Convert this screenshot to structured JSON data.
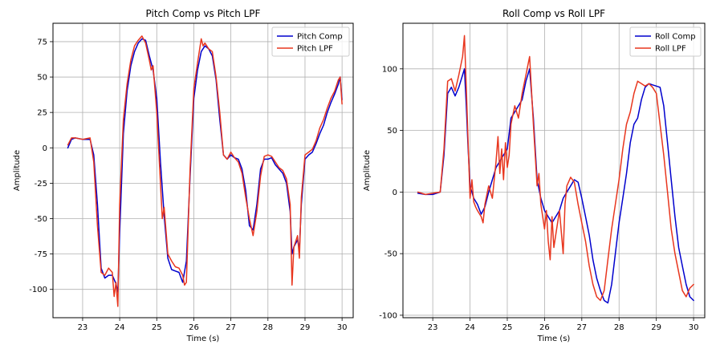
{
  "chart_data": [
    {
      "type": "line",
      "title": "Pitch Comp vs Pitch LPF",
      "xlabel": "Time (s)",
      "ylabel": "Amplitude",
      "xlim": [
        22.2,
        30.3
      ],
      "ylim": [
        -120,
        88
      ],
      "xticks": [
        23,
        24,
        25,
        26,
        27,
        28,
        29,
        30
      ],
      "yticks": [
        -100,
        -75,
        -50,
        -25,
        0,
        25,
        50,
        75
      ],
      "grid": true,
      "legend": "top-right",
      "series": [
        {
          "name": "Pitch Comp",
          "color": "#0000cd",
          "x": [
            22.6,
            22.7,
            22.8,
            23.0,
            23.2,
            23.3,
            23.4,
            23.5,
            23.6,
            23.7,
            23.8,
            23.9,
            23.95,
            24.0,
            24.1,
            24.2,
            24.3,
            24.4,
            24.5,
            24.6,
            24.7,
            24.8,
            24.9,
            25.0,
            25.1,
            25.2,
            25.3,
            25.4,
            25.5,
            25.6,
            25.7,
            25.8,
            25.9,
            26.0,
            26.1,
            26.2,
            26.3,
            26.4,
            26.5,
            26.6,
            26.7,
            26.8,
            26.9,
            27.0,
            27.1,
            27.2,
            27.3,
            27.4,
            27.5,
            27.6,
            27.7,
            27.8,
            27.9,
            28.0,
            28.1,
            28.2,
            28.3,
            28.4,
            28.5,
            28.6,
            28.65,
            28.7,
            28.8,
            28.85,
            28.9,
            29.0,
            29.1,
            29.2,
            29.3,
            29.4,
            29.5,
            29.6,
            29.7,
            29.8,
            29.9,
            29.95,
            30.0
          ],
          "values": [
            0,
            6,
            7,
            6,
            6,
            -5,
            -40,
            -85,
            -92,
            -90,
            -90,
            -96,
            -102,
            -60,
            10,
            40,
            58,
            68,
            74,
            77,
            76,
            65,
            55,
            35,
            -10,
            -48,
            -78,
            -86,
            -87,
            -88,
            -95,
            -80,
            -20,
            35,
            55,
            68,
            72,
            70,
            65,
            48,
            20,
            -5,
            -8,
            -5,
            -7,
            -8,
            -15,
            -30,
            -55,
            -58,
            -40,
            -15,
            -8,
            -8,
            -7,
            -12,
            -15,
            -18,
            -25,
            -45,
            -75,
            -70,
            -65,
            -72,
            -40,
            -8,
            -5,
            -3,
            3,
            10,
            16,
            25,
            32,
            38,
            45,
            50,
            34
          ]
        },
        {
          "name": "Pitch LPF",
          "color": "#e8361e",
          "x": [
            22.6,
            22.7,
            22.8,
            23.0,
            23.2,
            23.3,
            23.4,
            23.5,
            23.6,
            23.7,
            23.8,
            23.85,
            23.9,
            23.95,
            24.0,
            24.05,
            24.1,
            24.2,
            24.3,
            24.4,
            24.5,
            24.6,
            24.7,
            24.8,
            24.85,
            24.9,
            25.0,
            25.1,
            25.15,
            25.2,
            25.3,
            25.4,
            25.5,
            25.6,
            25.7,
            25.75,
            25.8,
            25.9,
            26.0,
            26.1,
            26.2,
            26.25,
            26.3,
            26.4,
            26.5,
            26.6,
            26.7,
            26.8,
            26.9,
            27.0,
            27.1,
            27.2,
            27.3,
            27.4,
            27.5,
            27.6,
            27.7,
            27.8,
            27.9,
            28.0,
            28.1,
            28.2,
            28.3,
            28.4,
            28.5,
            28.6,
            28.65,
            28.7,
            28.8,
            28.85,
            28.9,
            29.0,
            29.1,
            29.2,
            29.3,
            29.4,
            29.5,
            29.6,
            29.7,
            29.8,
            29.9,
            29.95,
            30.0
          ],
          "values": [
            2,
            7,
            7,
            6,
            7,
            -10,
            -55,
            -88,
            -90,
            -85,
            -88,
            -105,
            -95,
            -112,
            -40,
            -10,
            20,
            45,
            62,
            72,
            76,
            79,
            74,
            62,
            55,
            58,
            25,
            -25,
            -50,
            -42,
            -75,
            -80,
            -84,
            -85,
            -90,
            -97,
            -95,
            -15,
            42,
            60,
            77,
            72,
            74,
            70,
            68,
            50,
            25,
            -5,
            -8,
            -3,
            -7,
            -10,
            -18,
            -35,
            -50,
            -62,
            -45,
            -20,
            -6,
            -5,
            -6,
            -10,
            -14,
            -16,
            -22,
            -40,
            -97,
            -70,
            -62,
            -78,
            -35,
            -5,
            -3,
            -1,
            5,
            14,
            20,
            28,
            35,
            40,
            48,
            50,
            31
          ]
        }
      ]
    },
    {
      "type": "line",
      "title": "Roll Comp vs Roll LPF",
      "xlabel": "Time (s)",
      "ylabel": "Amplitude",
      "xlim": [
        22.2,
        30.3
      ],
      "ylim": [
        -102,
        137
      ],
      "xticks": [
        23,
        24,
        25,
        26,
        27,
        28,
        29,
        30
      ],
      "yticks": [
        -100,
        -50,
        0,
        50,
        100
      ],
      "grid": true,
      "legend": "top-right",
      "series": [
        {
          "name": "Roll Comp",
          "color": "#0000cd",
          "x": [
            22.6,
            22.8,
            23.0,
            23.2,
            23.3,
            23.4,
            23.5,
            23.6,
            23.7,
            23.8,
            23.85,
            23.9,
            23.95,
            24.0,
            24.05,
            24.1,
            24.2,
            24.3,
            24.4,
            24.5,
            24.6,
            24.7,
            24.8,
            24.9,
            25.0,
            25.1,
            25.2,
            25.3,
            25.4,
            25.5,
            25.6,
            25.7,
            25.75,
            25.8,
            25.9,
            26.0,
            26.1,
            26.2,
            26.3,
            26.4,
            26.5,
            26.6,
            26.7,
            26.8,
            26.9,
            27.0,
            27.1,
            27.2,
            27.3,
            27.4,
            27.5,
            27.6,
            27.7,
            27.8,
            27.9,
            28.0,
            28.1,
            28.2,
            28.3,
            28.4,
            28.5,
            28.6,
            28.7,
            28.8,
            28.9,
            29.0,
            29.1,
            29.2,
            29.3,
            29.4,
            29.5,
            29.6,
            29.7,
            29.8,
            29.9,
            30.0
          ],
          "values": [
            -1,
            -2,
            -2,
            0,
            30,
            80,
            85,
            78,
            85,
            95,
            100,
            70,
            35,
            5,
            0,
            -5,
            -10,
            -18,
            -12,
            0,
            10,
            20,
            25,
            30,
            35,
            60,
            65,
            70,
            75,
            90,
            100,
            60,
            35,
            10,
            -5,
            -15,
            -20,
            -25,
            -20,
            -15,
            -5,
            0,
            5,
            10,
            8,
            -5,
            -20,
            -35,
            -55,
            -70,
            -80,
            -88,
            -90,
            -75,
            -50,
            -25,
            -5,
            15,
            40,
            55,
            60,
            75,
            85,
            88,
            87,
            86,
            85,
            70,
            40,
            10,
            -20,
            -45,
            -60,
            -75,
            -85,
            -88
          ]
        },
        {
          "name": "Roll LPF",
          "color": "#e8361e",
          "x": [
            22.6,
            22.8,
            23.0,
            23.2,
            23.3,
            23.4,
            23.5,
            23.6,
            23.7,
            23.8,
            23.85,
            23.9,
            23.95,
            24.0,
            24.05,
            24.1,
            24.15,
            24.2,
            24.3,
            24.35,
            24.4,
            24.5,
            24.6,
            24.7,
            24.75,
            24.8,
            24.85,
            24.9,
            24.95,
            25.0,
            25.05,
            25.1,
            25.2,
            25.3,
            25.4,
            25.5,
            25.6,
            25.7,
            25.75,
            25.8,
            25.85,
            25.9,
            26.0,
            26.05,
            26.1,
            26.15,
            26.2,
            26.25,
            26.3,
            26.4,
            26.5,
            26.55,
            26.6,
            26.7,
            26.8,
            26.9,
            27.0,
            27.1,
            27.2,
            27.3,
            27.4,
            27.5,
            27.6,
            27.7,
            27.8,
            27.9,
            28.0,
            28.1,
            28.2,
            28.3,
            28.4,
            28.5,
            28.6,
            28.7,
            28.8,
            28.9,
            29.0,
            29.1,
            29.2,
            29.3,
            29.4,
            29.5,
            29.6,
            29.7,
            29.8,
            29.9,
            30.0
          ],
          "values": [
            0,
            -2,
            -1,
            0,
            35,
            90,
            92,
            82,
            95,
            110,
            127,
            85,
            40,
            -5,
            10,
            -8,
            -12,
            -15,
            -20,
            -25,
            -10,
            5,
            -5,
            25,
            45,
            15,
            35,
            10,
            40,
            20,
            30,
            55,
            70,
            60,
            80,
            95,
            110,
            55,
            30,
            5,
            15,
            -10,
            -30,
            -15,
            -40,
            -55,
            -20,
            -45,
            -35,
            -15,
            -50,
            -10,
            5,
            12,
            8,
            -10,
            -25,
            -40,
            -60,
            -75,
            -85,
            -88,
            -80,
            -55,
            -30,
            -10,
            10,
            35,
            55,
            65,
            80,
            90,
            88,
            86,
            88,
            85,
            80,
            55,
            30,
            0,
            -30,
            -50,
            -65,
            -80,
            -85,
            -78,
            -75
          ]
        }
      ]
    }
  ]
}
